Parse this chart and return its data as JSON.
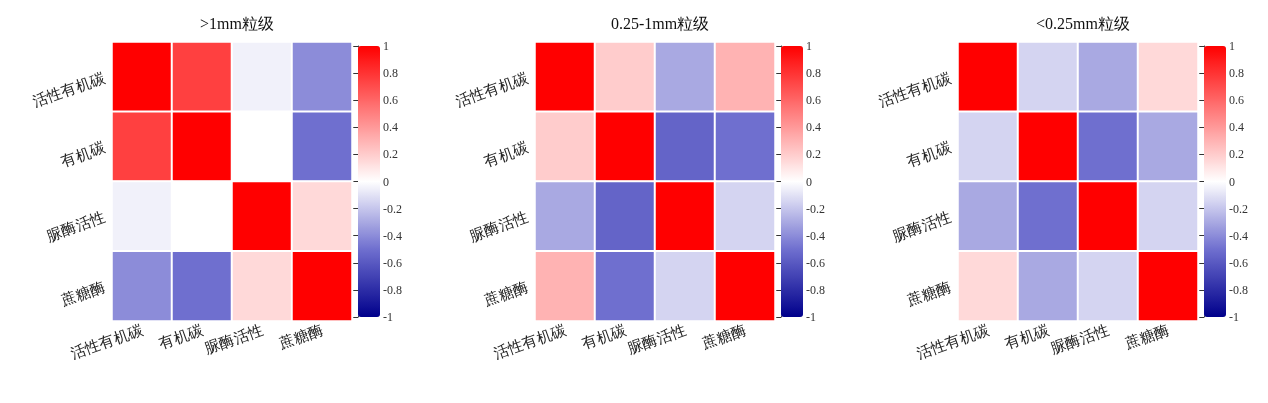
{
  "chart_data": [
    {
      "type": "heatmap",
      "title": ">1mm粒级",
      "categories": [
        "活性有机碳",
        "有机碳",
        "脲酶活性",
        "蔗糖酶"
      ],
      "y_categories": [
        "活性有机碳",
        "有机碳",
        "脲酶活性",
        "蔗糖酶"
      ],
      "cells": [
        [
          1,
          0.75,
          -0.05,
          -0.4
        ],
        [
          0.75,
          1,
          0,
          -0.5
        ],
        [
          -0.05,
          0,
          1,
          0.15
        ],
        [
          -0.4,
          -0.5,
          0.15,
          1
        ]
      ],
      "clim": [
        -1,
        1
      ],
      "cticks": [
        -1,
        -0.8,
        -0.6,
        -0.4,
        -0.2,
        0,
        0.2,
        0.4,
        0.6,
        0.8,
        1
      ]
    },
    {
      "type": "heatmap",
      "title": "0.25-1mm粒级",
      "categories": [
        "活性有机碳",
        "有机碳",
        "脲酶活性",
        "蔗糖酶"
      ],
      "y_categories": [
        "活性有机碳",
        "有机碳",
        "脲酶活性",
        "蔗糖酶"
      ],
      "cells": [
        [
          1,
          0.2,
          -0.3,
          0.3
        ],
        [
          0.2,
          1,
          -0.55,
          -0.5
        ],
        [
          -0.3,
          -0.55,
          1,
          -0.15
        ],
        [
          0.3,
          -0.5,
          -0.15,
          1
        ]
      ],
      "clim": [
        -1,
        1
      ],
      "cticks": [
        -1,
        -0.8,
        -0.6,
        -0.4,
        -0.2,
        0,
        0.2,
        0.4,
        0.6,
        0.8,
        1
      ]
    },
    {
      "type": "heatmap",
      "title": "<0.25mm粒级",
      "categories": [
        "活性有机碳",
        "有机碳",
        "脲酶活性",
        "蔗糖酶"
      ],
      "y_categories": [
        "活性有机碳",
        "有机碳",
        "脲酶活性",
        "蔗糖酶"
      ],
      "cells": [
        [
          1,
          -0.15,
          -0.3,
          0.15
        ],
        [
          -0.15,
          1,
          -0.5,
          -0.3
        ],
        [
          -0.3,
          -0.5,
          1,
          -0.15
        ],
        [
          0.15,
          -0.3,
          -0.15,
          1
        ]
      ],
      "clim": [
        -1,
        1
      ],
      "cticks": [
        -1,
        -0.8,
        -0.6,
        -0.4,
        -0.2,
        0,
        0.2,
        0.4,
        0.6,
        0.8,
        1
      ]
    }
  ]
}
